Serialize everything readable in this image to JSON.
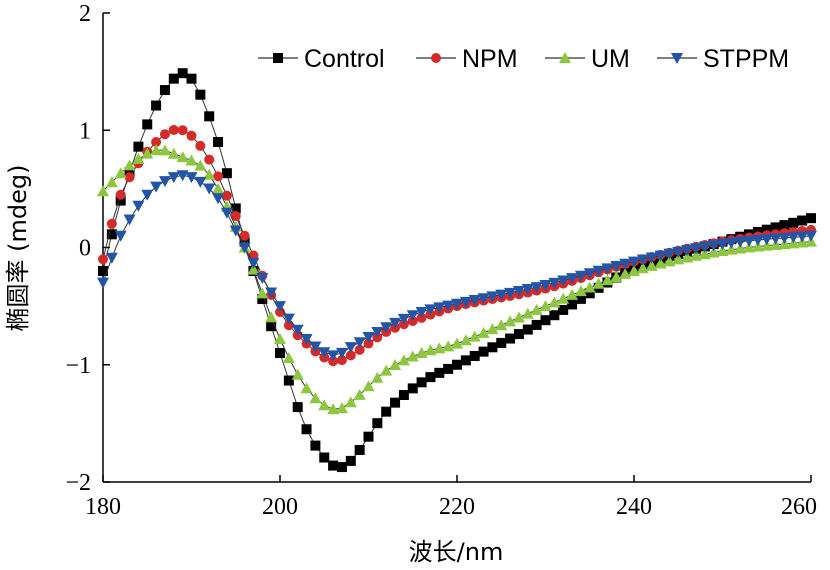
{
  "chart_data": {
    "type": "line",
    "title": "",
    "xlabel": "波长/nm",
    "ylabel": "椭圆率 (mdeg)",
    "xlim": [
      180,
      260
    ],
    "ylim": [
      -2,
      2
    ],
    "xticks": [
      "180",
      "200",
      "220",
      "240",
      "260"
    ],
    "yticks": [
      "2",
      "1",
      "0",
      "−1",
      "−2"
    ],
    "grid": false,
    "legend": "top-right",
    "x": [
      180,
      190,
      198,
      206,
      230,
      260
    ],
    "series": [
      {
        "name": "Control",
        "color": "#000000",
        "marker": "square",
        "key_points": [
          [
            180,
            -0.2
          ],
          [
            182,
            0.4
          ],
          [
            185,
            1.05
          ],
          [
            188,
            1.44
          ],
          [
            190,
            1.44
          ],
          [
            193,
            0.9
          ],
          [
            196,
            0.05
          ],
          [
            200,
            -0.9
          ],
          [
            203,
            -1.55
          ],
          [
            206,
            -1.86
          ],
          [
            208,
            -1.82
          ],
          [
            212,
            -1.4
          ],
          [
            216,
            -1.15
          ],
          [
            220,
            -1.0
          ],
          [
            230,
            -0.62
          ],
          [
            240,
            -0.18
          ],
          [
            250,
            0.05
          ],
          [
            260,
            0.25
          ]
        ]
      },
      {
        "name": "NPM",
        "color": "#d62a2a",
        "marker": "circle",
        "key_points": [
          [
            180,
            -0.1
          ],
          [
            182,
            0.45
          ],
          [
            186,
            0.9
          ],
          [
            189,
            1.0
          ],
          [
            192,
            0.75
          ],
          [
            196,
            0.1
          ],
          [
            200,
            -0.55
          ],
          [
            203,
            -0.82
          ],
          [
            206,
            -0.97
          ],
          [
            208,
            -0.92
          ],
          [
            212,
            -0.72
          ],
          [
            216,
            -0.6
          ],
          [
            220,
            -0.5
          ],
          [
            230,
            -0.35
          ],
          [
            240,
            -0.12
          ],
          [
            250,
            0.05
          ],
          [
            260,
            0.15
          ]
        ]
      },
      {
        "name": "UM",
        "color": "#8dc63f",
        "marker": "triangle-up",
        "key_points": [
          [
            180,
            0.48
          ],
          [
            183,
            0.7
          ],
          [
            186,
            0.83
          ],
          [
            188,
            0.8
          ],
          [
            192,
            0.62
          ],
          [
            196,
            0.0
          ],
          [
            200,
            -0.78
          ],
          [
            203,
            -1.2
          ],
          [
            206,
            -1.38
          ],
          [
            208,
            -1.32
          ],
          [
            212,
            -1.05
          ],
          [
            216,
            -0.9
          ],
          [
            220,
            -0.82
          ],
          [
            230,
            -0.5
          ],
          [
            240,
            -0.2
          ],
          [
            250,
            -0.03
          ],
          [
            260,
            0.05
          ]
        ]
      },
      {
        "name": "STPPM",
        "color": "#2255a8",
        "marker": "triangle-down",
        "key_points": [
          [
            180,
            -0.3
          ],
          [
            182,
            0.1
          ],
          [
            185,
            0.45
          ],
          [
            188,
            0.6
          ],
          [
            190,
            0.6
          ],
          [
            193,
            0.42
          ],
          [
            196,
            0.0
          ],
          [
            200,
            -0.5
          ],
          [
            203,
            -0.78
          ],
          [
            206,
            -0.92
          ],
          [
            208,
            -0.85
          ],
          [
            212,
            -0.68
          ],
          [
            216,
            -0.55
          ],
          [
            220,
            -0.48
          ],
          [
            230,
            -0.32
          ],
          [
            240,
            -0.12
          ],
          [
            250,
            0.03
          ],
          [
            260,
            0.1
          ]
        ]
      }
    ]
  }
}
